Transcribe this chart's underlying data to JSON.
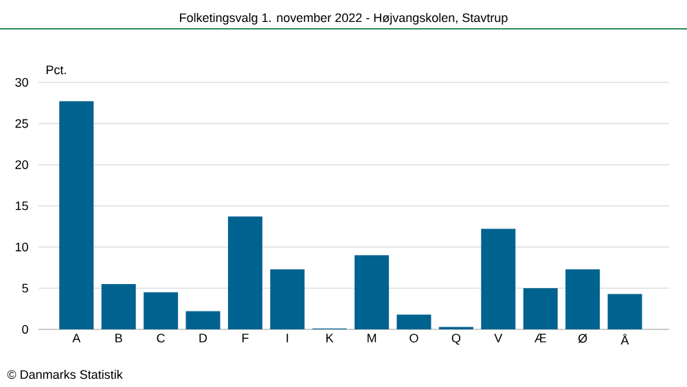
{
  "chart_data": {
    "type": "bar",
    "title": "Folketingsvalg 1. november 2022 - Højvangskolen, Stavtrup",
    "ylabel": "Pct.",
    "categories": [
      "A",
      "B",
      "C",
      "D",
      "F",
      "I",
      "K",
      "M",
      "O",
      "Q",
      "V",
      "Æ",
      "Ø",
      "Å"
    ],
    "values": [
      27.7,
      5.5,
      4.5,
      2.2,
      13.7,
      7.3,
      0.1,
      9.0,
      1.8,
      0.3,
      12.2,
      5.0,
      7.3,
      4.3
    ],
    "color": "#00628f",
    "ylim": [
      0,
      30
    ],
    "yticks": [
      0,
      5,
      10,
      15,
      20,
      25,
      30
    ],
    "grid": "y",
    "annotations": [
      "© Danmarks Statistik"
    ]
  }
}
